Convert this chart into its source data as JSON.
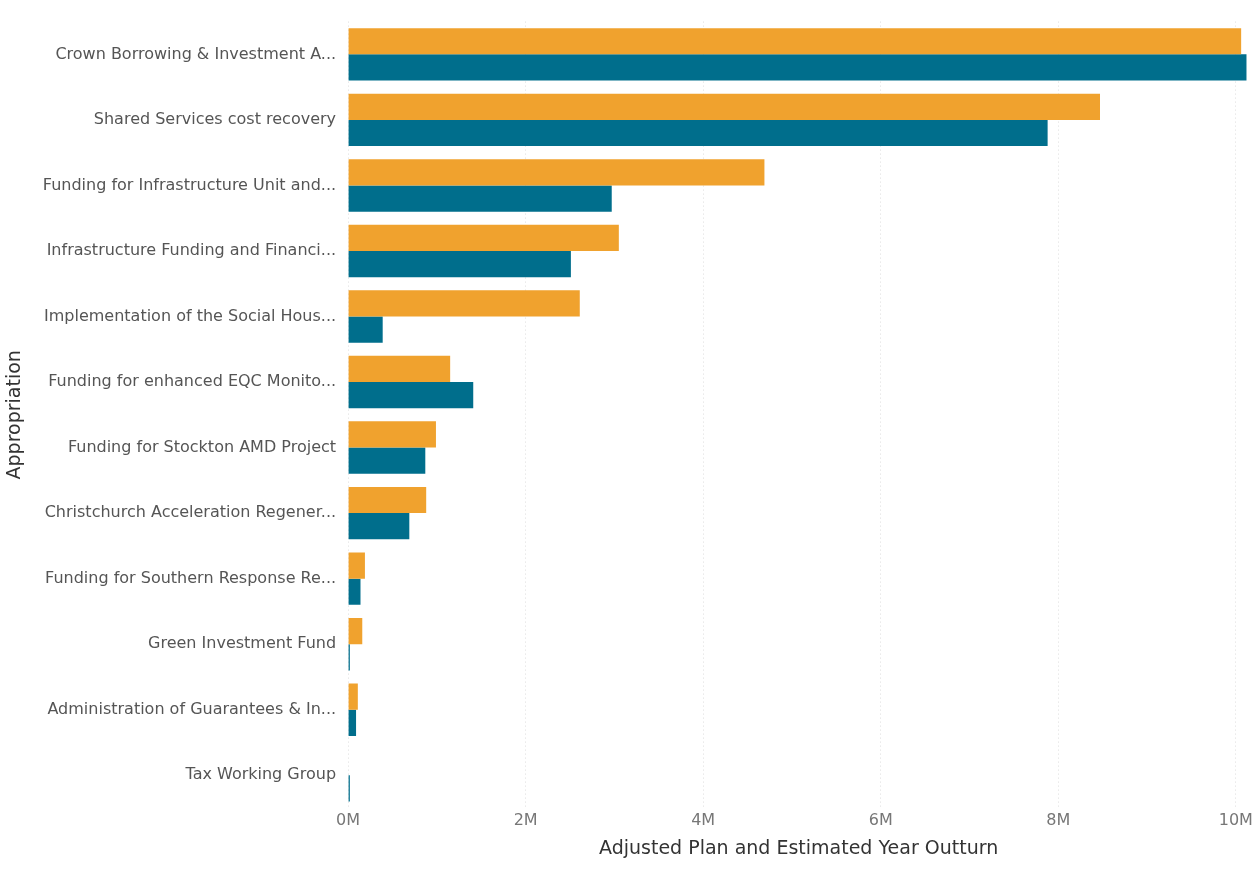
{
  "chart_data": {
    "type": "bar",
    "orientation": "horizontal",
    "xlabel": "Adjusted Plan and Estimated Year Outturn",
    "ylabel": "Appropriation",
    "categories": [
      "Crown Borrowing & Investment A...",
      "Shared Services cost recovery",
      "Funding for Infrastructure Unit and...",
      "Infrastructure Funding and Financi...",
      "Implementation of the Social Hous...",
      "Funding for enhanced EQC Monito...",
      "Funding for Stockton AMD Project",
      "Christchurch Acceleration Regener...",
      "Funding for Southern Response Re...",
      "Green Investment Fund",
      "Administration of Guarantees & In...",
      "Tax Working Group"
    ],
    "series": [
      {
        "color": "#f0a22e",
        "values": [
          10.06,
          8.47,
          4.69,
          3.05,
          2.61,
          1.15,
          0.99,
          0.88,
          0.19,
          0.16,
          0.11,
          null
        ]
      },
      {
        "color": "#006e8c",
        "values": [
          10.12,
          7.88,
          2.97,
          2.51,
          0.39,
          1.41,
          0.87,
          0.69,
          0.14,
          0.02,
          0.09,
          0.02
        ]
      }
    ],
    "xlim": [
      0,
      10.15
    ],
    "xticks": [
      {
        "value": 0,
        "label": "0M"
      },
      {
        "value": 2,
        "label": "2M"
      },
      {
        "value": 4,
        "label": "4M"
      },
      {
        "value": 6,
        "label": "6M"
      },
      {
        "value": 8,
        "label": "8M"
      },
      {
        "value": 10,
        "label": "10M"
      }
    ],
    "grid": "x",
    "legend": false
  }
}
